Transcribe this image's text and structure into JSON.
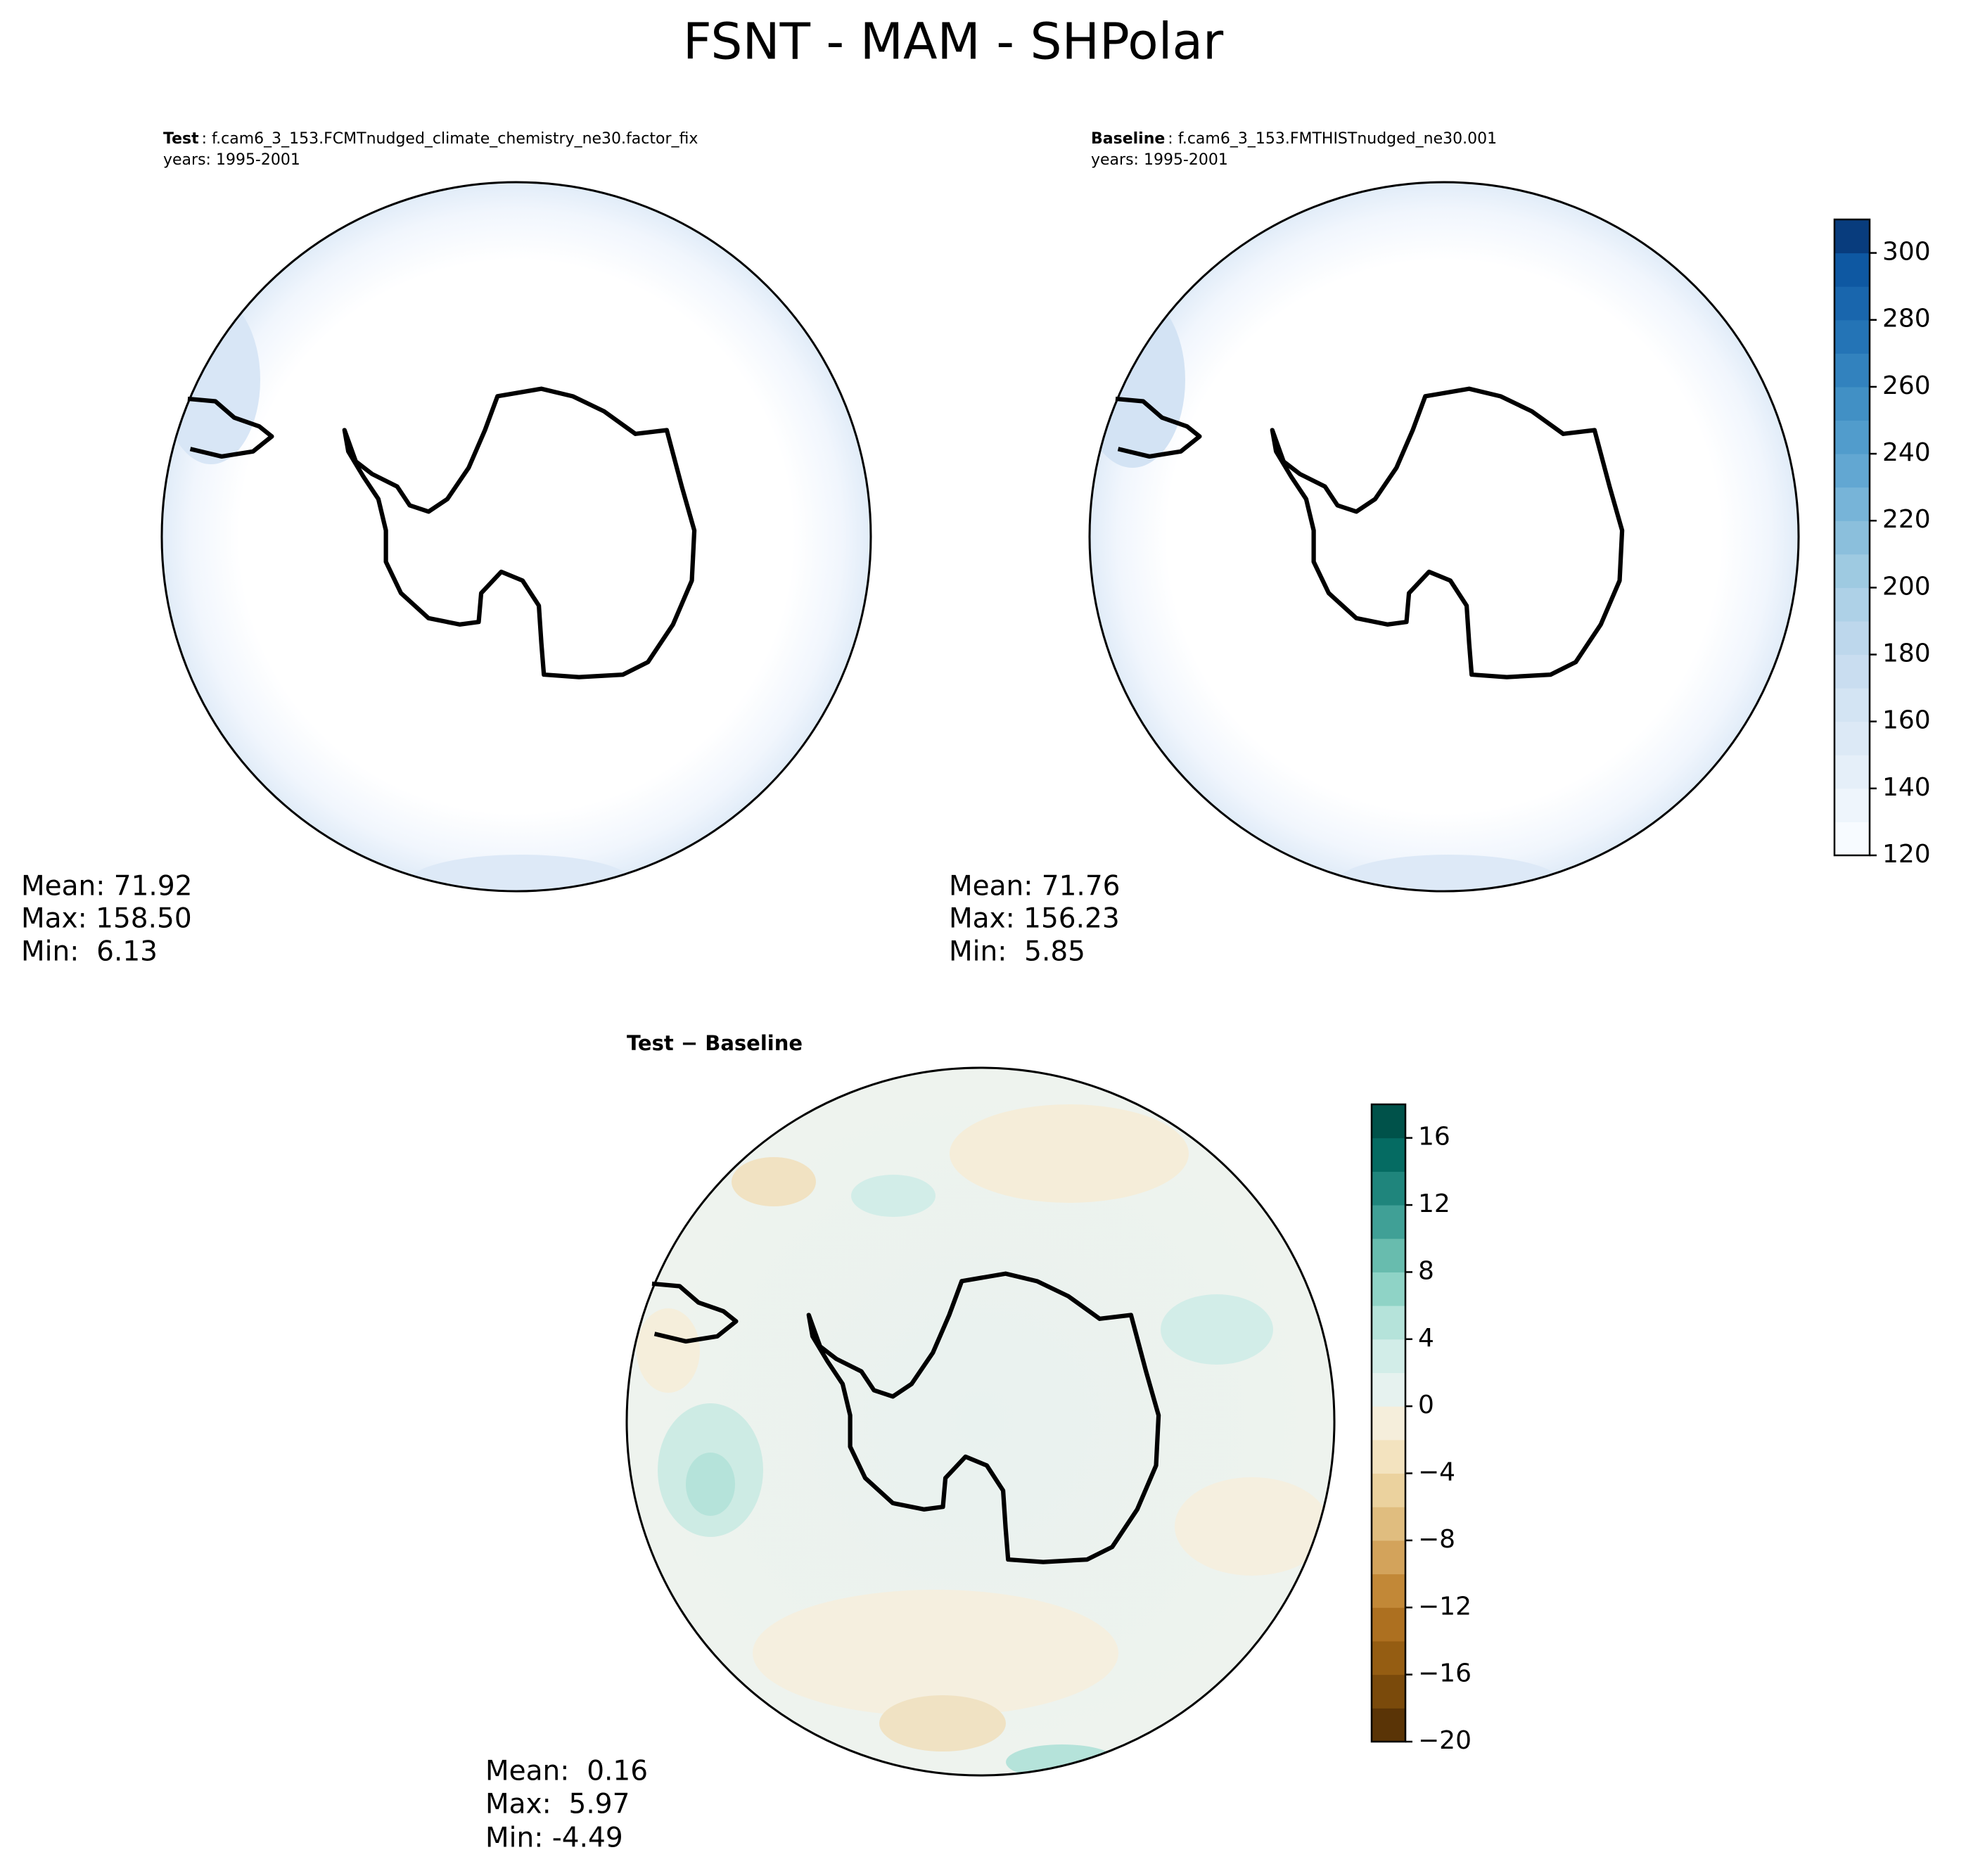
{
  "title": "FSNT - MAM - SHPolar",
  "panels": [
    {
      "label": "Test",
      "name": ": f.cam6_3_153.FCMTnudged_climate_chemistry_ne30.factor_fix",
      "years": "years: 1995-2001",
      "stats": [
        "Mean: 71.92",
        "Max: 158.50",
        "Min:  6.13"
      ]
    },
    {
      "label": "Baseline",
      "name": ": f.cam6_3_153.FMTHISTnudged_ne30.001",
      "years": "years: 1995-2001",
      "stats": [
        "Mean: 71.76",
        "Max: 156.23",
        "Min:  5.85"
      ]
    },
    {
      "title": "Test − Baseline",
      "stats": [
        "Mean:  0.16",
        "Max:  5.97",
        "Min: -4.49"
      ]
    }
  ],
  "colorbars": [
    {
      "lim": [
        120,
        310
      ],
      "levels": [
        120,
        130,
        140,
        150,
        160,
        170,
        180,
        190,
        200,
        210,
        220,
        230,
        240,
        250,
        260,
        270,
        280,
        290,
        300,
        310
      ],
      "colors": [
        "#f7fbff",
        "#eef5fc",
        "#e5eff9",
        "#dce9f6",
        "#d3e4f3",
        "#c9ddf0",
        "#bdd7ec",
        "#aed1e7",
        "#9ecae1",
        "#8bbfdc",
        "#77b4d8",
        "#62a7d2",
        "#519ccc",
        "#4190c5",
        "#3282be",
        "#2474b6",
        "#1966ad",
        "#0e58a2",
        "#083c7d"
      ],
      "ticks": [
        120,
        140,
        160,
        180,
        200,
        220,
        240,
        260,
        280,
        300
      ]
    },
    {
      "lim": [
        -20,
        18
      ],
      "levels": [
        -20,
        -18,
        -16,
        -14,
        -12,
        -10,
        -8,
        -6,
        -4,
        -2,
        0,
        2,
        4,
        6,
        8,
        10,
        12,
        14,
        16,
        18
      ],
      "colors": [
        "#5a3406",
        "#7a4a0b",
        "#955d12",
        "#ad7020",
        "#c28837",
        "#d3a35b",
        "#e0bd7f",
        "#ebd29e",
        "#f3e3bf",
        "#f5eedb",
        "#e6f2ef",
        "#d2ede8",
        "#b5e3da",
        "#8fd3c6",
        "#68bcae",
        "#40a096",
        "#1f857c",
        "#056b62",
        "#00524a"
      ],
      "ticks": [
        {
          "value": -20,
          "label": "−20"
        },
        {
          "value": -16,
          "label": "−16"
        },
        {
          "value": -12,
          "label": "−12"
        },
        {
          "value": -8,
          "label": "−8"
        },
        {
          "value": -4,
          "label": "−4"
        },
        0,
        4,
        8,
        12,
        16
      ]
    }
  ]
}
